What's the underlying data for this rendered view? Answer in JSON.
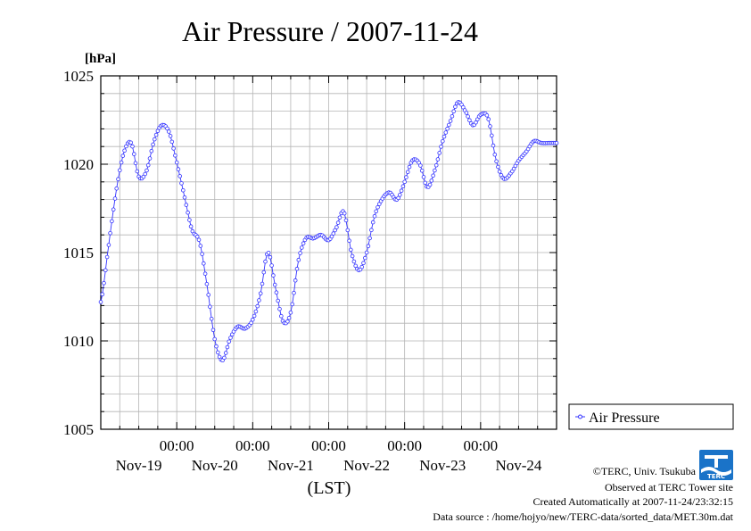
{
  "chart_data": {
    "type": "line",
    "title": "Air Pressure / 2007-11-24",
    "yunit": "[hPa]",
    "xlabel": "(LST)",
    "ylim": [
      1005,
      1025
    ],
    "yticks": [
      "1005",
      "1010",
      "1015",
      "1020",
      "1025"
    ],
    "x_time_labels": [
      "00:00",
      "00:00",
      "00:00",
      "00:00",
      "00:00"
    ],
    "x_day_labels": [
      "Nov-19",
      "Nov-20",
      "Nov-21",
      "Nov-22",
      "Nov-23",
      "Nov-24"
    ],
    "x_range_days": [
      0,
      6
    ],
    "grid": true,
    "legend_position": "right",
    "series": [
      {
        "name": "Air Pressure",
        "color": "#3333ff",
        "x_days": [
          0.0,
          0.1,
          0.2,
          0.3,
          0.4,
          0.5,
          0.6,
          0.7,
          0.8,
          0.9,
          1.0,
          1.1,
          1.2,
          1.3,
          1.4,
          1.5,
          1.6,
          1.7,
          1.8,
          1.9,
          2.0,
          2.1,
          2.2,
          2.3,
          2.4,
          2.5,
          2.6,
          2.7,
          2.8,
          2.9,
          3.0,
          3.1,
          3.2,
          3.3,
          3.4,
          3.5,
          3.6,
          3.7,
          3.8,
          3.9,
          4.0,
          4.1,
          4.2,
          4.3,
          4.4,
          4.5,
          4.6,
          4.7,
          4.8,
          4.9,
          5.0,
          5.1,
          5.2,
          5.3,
          5.4,
          5.5,
          5.6,
          5.7,
          5.8,
          5.9,
          6.0
        ],
        "values": [
          1012.2,
          1015.3,
          1018.4,
          1020.6,
          1021.2,
          1019.3,
          1019.6,
          1021.3,
          1022.2,
          1021.8,
          1020.1,
          1018.2,
          1016.3,
          1015.6,
          1013.1,
          1010.1,
          1008.9,
          1010.1,
          1010.8,
          1010.7,
          1011.2,
          1012.6,
          1015.0,
          1013.0,
          1011.1,
          1011.6,
          1014.5,
          1015.8,
          1015.8,
          1016.0,
          1015.7,
          1016.4,
          1017.3,
          1015.0,
          1014.0,
          1015.0,
          1017.0,
          1018.0,
          1018.4,
          1018.0,
          1019.0,
          1020.2,
          1020.0,
          1018.7,
          1019.7,
          1021.3,
          1022.4,
          1023.5,
          1023.0,
          1022.2,
          1022.8,
          1022.6,
          1020.3,
          1019.2,
          1019.5,
          1020.2,
          1020.7,
          1021.3,
          1021.2,
          1021.2,
          1021.2
        ]
      }
    ]
  },
  "footer": {
    "copyright": "©TERC, Univ. Tsukuba",
    "observed": "Observed at TERC Tower site",
    "created": "Created Automatically at 2007-11-24/23:32:15",
    "source": "Data source : /home/hojyo/new/TERC-data/sorted_data/MET.30m.dat"
  },
  "logo": {
    "text": "TERC",
    "color": "#1a73c8"
  }
}
